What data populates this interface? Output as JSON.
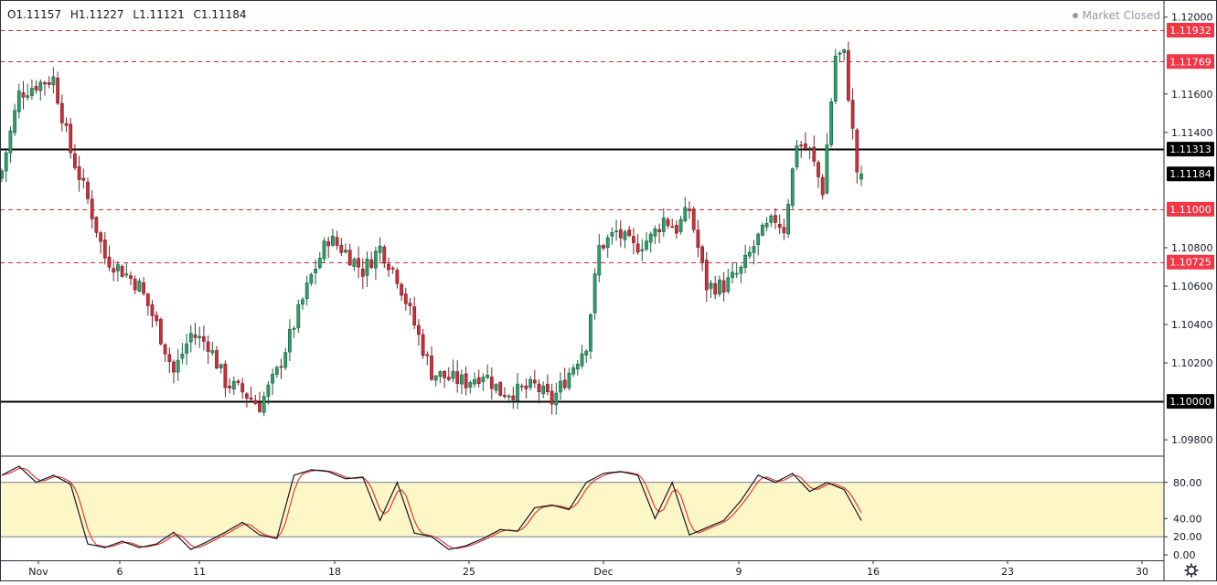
{
  "legend": {
    "open": "O1.11157",
    "high": "H1.11227",
    "low": "L1.11121",
    "close": "C1.11184"
  },
  "status": {
    "label": "Market Closed"
  },
  "icons": {
    "settings": "gear-icon"
  },
  "colors": {
    "up": "#26a69a",
    "up_fill": "#2e9e6a",
    "down": "#ef5350",
    "down_fill": "#c8303a",
    "level_line": "#d32f2f",
    "level_label_bg": "#f23645",
    "key_line": "#000000",
    "stoch_k": "#131722",
    "stoch_d": "#e53935",
    "stoch_band": "#fdf7c7"
  },
  "chart_data": [
    {
      "type": "candlestick",
      "symbol_ohlc_display": "O1.11157 H1.11227 L1.11121 C1.11184",
      "ylim": [
        1.0972,
        1.1207
      ],
      "y_ticks": [
        "1.12000",
        "1.11600",
        "1.11400",
        "1.10800",
        "1.10600",
        "1.10400",
        "1.10200",
        "1.09800"
      ],
      "x_ticks": [
        "Nov",
        "6",
        "11",
        "18",
        "25",
        "Dec",
        "9",
        "16",
        "23",
        "30"
      ],
      "price_labels": [
        {
          "value": 1.11932,
          "text": "1.11932",
          "style": "dashed-red"
        },
        {
          "value": 1.11769,
          "text": "1.11769",
          "style": "dashed-red"
        },
        {
          "value": 1.11313,
          "text": "1.11313",
          "style": "solid-black"
        },
        {
          "value": 1.11184,
          "text": "1.11184",
          "style": "last-price"
        },
        {
          "value": 1.11,
          "text": "1.11000",
          "style": "dashed-red"
        },
        {
          "value": 1.10725,
          "text": "1.10725",
          "style": "dashed-red"
        },
        {
          "value": 1.1,
          "text": "1.10000",
          "style": "solid-black"
        }
      ],
      "checkpoints_close": [
        [
          0,
          1.112
        ],
        [
          4,
          1.116
        ],
        [
          8,
          1.1165
        ],
        [
          12,
          1.1168
        ],
        [
          16,
          1.113
        ],
        [
          20,
          1.1105
        ],
        [
          24,
          1.1075
        ],
        [
          28,
          1.1068
        ],
        [
          32,
          1.106
        ],
        [
          36,
          1.104
        ],
        [
          40,
          1.1015
        ],
        [
          44,
          1.1035
        ],
        [
          48,
          1.103
        ],
        [
          52,
          1.101
        ],
        [
          56,
          1.1005
        ],
        [
          60,
          1.0998
        ],
        [
          64,
          1.1015
        ],
        [
          68,
          1.104
        ],
        [
          72,
          1.1065
        ],
        [
          76,
          1.1085
        ],
        [
          80,
          1.1078
        ],
        [
          84,
          1.1068
        ],
        [
          88,
          1.108
        ],
        [
          92,
          1.1065
        ],
        [
          96,
          1.104
        ],
        [
          100,
          1.1015
        ],
        [
          104,
          1.1012
        ],
        [
          108,
          1.101
        ],
        [
          112,
          1.1015
        ],
        [
          116,
          1.1005
        ],
        [
          120,
          1.1005
        ],
        [
          124,
          1.1008
        ],
        [
          128,
          1.1
        ],
        [
          132,
          1.1015
        ],
        [
          136,
          1.103
        ],
        [
          139,
          1.108
        ],
        [
          143,
          1.1088
        ],
        [
          147,
          1.108
        ],
        [
          151,
          1.1085
        ],
        [
          154,
          1.1095
        ],
        [
          157,
          1.109
        ],
        [
          160,
          1.11
        ],
        [
          164,
          1.106
        ],
        [
          168,
          1.106
        ],
        [
          172,
          1.1068
        ],
        [
          176,
          1.1085
        ],
        [
          180,
          1.1095
        ],
        [
          182,
          1.109
        ],
        [
          185,
          1.1135
        ],
        [
          188,
          1.113
        ],
        [
          191,
          1.111
        ],
        [
          194,
          1.118
        ],
        [
          196,
          1.118
        ],
        [
          197,
          1.116
        ],
        [
          199,
          1.112
        ],
        [
          200,
          1.11184
        ]
      ],
      "bars": 201
    },
    {
      "type": "line",
      "indicator": "stochastic",
      "ylim": [
        0,
        100
      ],
      "band": [
        20,
        80
      ],
      "y_ticks": [
        "80.00",
        "40.00",
        "20.00",
        "0.00"
      ],
      "series": [
        {
          "key": "k",
          "values_checkpoints": [
            [
              0,
              88
            ],
            [
              4,
              98
            ],
            [
              8,
              80
            ],
            [
              12,
              88
            ],
            [
              16,
              78
            ],
            [
              20,
              12
            ],
            [
              24,
              8
            ],
            [
              28,
              15
            ],
            [
              32,
              8
            ],
            [
              36,
              12
            ],
            [
              40,
              25
            ],
            [
              44,
              6
            ],
            [
              48,
              15
            ],
            [
              52,
              25
            ],
            [
              56,
              36
            ],
            [
              60,
              22
            ],
            [
              64,
              18
            ],
            [
              68,
              88
            ],
            [
              72,
              94
            ],
            [
              76,
              92
            ],
            [
              80,
              84
            ],
            [
              84,
              86
            ],
            [
              88,
              38
            ],
            [
              92,
              80
            ],
            [
              96,
              24
            ],
            [
              100,
              20
            ],
            [
              104,
              6
            ],
            [
              108,
              10
            ],
            [
              112,
              18
            ],
            [
              116,
              28
            ],
            [
              120,
              26
            ],
            [
              124,
              52
            ],
            [
              128,
              55
            ],
            [
              132,
              50
            ],
            [
              136,
              80
            ],
            [
              140,
              90
            ],
            [
              144,
              92
            ],
            [
              148,
              88
            ],
            [
              152,
              40
            ],
            [
              156,
              80
            ],
            [
              160,
              22
            ],
            [
              164,
              30
            ],
            [
              168,
              38
            ],
            [
              172,
              60
            ],
            [
              176,
              88
            ],
            [
              180,
              80
            ],
            [
              184,
              90
            ],
            [
              188,
              70
            ],
            [
              192,
              80
            ],
            [
              196,
              72
            ],
            [
              200,
              38
            ]
          ]
        },
        {
          "key": "d",
          "lag": 2
        }
      ]
    }
  ]
}
